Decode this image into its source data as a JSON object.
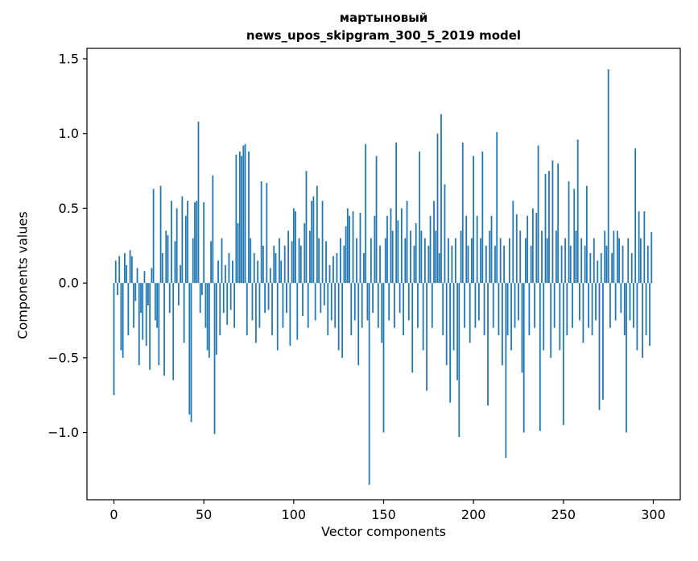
{
  "chart_data": {
    "type": "bar",
    "title_line1": "мартыновый",
    "title_line2": "news_upos_skipgram_300_5_2019 model",
    "xlabel": "Vector components",
    "ylabel": "Components values",
    "bar_color": "#1f77b4",
    "axis_color": "#000000",
    "n_components": 300,
    "xlim": [
      -15,
      315
    ],
    "ylim": [
      -1.45,
      1.57
    ],
    "grid": false,
    "legend": "none",
    "x_ticks": [
      0,
      50,
      100,
      150,
      200,
      250,
      300
    ],
    "y_tick_values": [
      1.5,
      1.0,
      0.5,
      0.0,
      -0.5,
      -1.0
    ],
    "y_tick_labels": [
      "1.5",
      "1.0",
      "0.5",
      "0.0",
      "−0.5",
      "−1.0"
    ],
    "values": [
      -0.75,
      0.15,
      -0.08,
      0.18,
      -0.45,
      -0.5,
      0.2,
      0.12,
      -0.35,
      0.22,
      0.18,
      -0.3,
      -0.12,
      0.1,
      -0.55,
      -0.2,
      -0.38,
      0.08,
      -0.42,
      -0.15,
      -0.58,
      0.1,
      0.63,
      -0.25,
      -0.3,
      -0.55,
      0.65,
      0.2,
      -0.62,
      0.35,
      0.32,
      -0.2,
      0.55,
      -0.65,
      0.28,
      0.5,
      -0.15,
      0.12,
      0.58,
      -0.4,
      0.45,
      0.55,
      -0.88,
      -0.93,
      0.3,
      0.54,
      0.55,
      1.08,
      -0.2,
      -0.08,
      0.54,
      -0.3,
      -0.45,
      -0.5,
      0.28,
      0.72,
      -1.01,
      -0.48,
      0.15,
      -0.35,
      0.3,
      -0.2,
      0.12,
      -0.28,
      0.2,
      -0.18,
      0.15,
      -0.3,
      0.86,
      0.4,
      0.88,
      0.85,
      0.92,
      0.93,
      -0.35,
      0.88,
      0.3,
      -0.25,
      0.2,
      -0.4,
      0.15,
      -0.3,
      0.68,
      0.25,
      -0.2,
      0.67,
      -0.18,
      0.1,
      -0.35,
      0.25,
      0.2,
      -0.45,
      0.3,
      0.15,
      -0.3,
      0.25,
      -0.2,
      0.35,
      -0.42,
      0.28,
      0.5,
      0.48,
      -0.38,
      0.3,
      0.25,
      -0.22,
      0.4,
      0.75,
      -0.3,
      0.35,
      0.55,
      0.58,
      -0.25,
      0.65,
      0.3,
      -0.2,
      0.55,
      -0.15,
      0.28,
      -0.35,
      0.12,
      -0.25,
      0.18,
      -0.3,
      0.2,
      -0.45,
      0.3,
      -0.5,
      0.25,
      0.38,
      0.5,
      0.45,
      -0.35,
      0.48,
      -0.25,
      0.3,
      -0.55,
      0.47,
      -0.3,
      0.2,
      0.93,
      -0.25,
      -1.35,
      0.3,
      -0.2,
      0.45,
      0.85,
      -0.3,
      0.25,
      -0.4,
      -1.0,
      0.3,
      0.45,
      -0.25,
      0.5,
      0.35,
      -0.3,
      0.94,
      0.42,
      -0.2,
      0.5,
      -0.35,
      0.3,
      0.55,
      -0.25,
      0.35,
      -0.6,
      0.25,
      0.4,
      -0.3,
      0.88,
      0.35,
      -0.45,
      0.3,
      -0.72,
      0.25,
      0.45,
      -0.3,
      0.55,
      0.35,
      1.0,
      0.2,
      1.13,
      -0.35,
      0.66,
      -0.55,
      0.3,
      -0.8,
      0.25,
      -0.45,
      0.3,
      -0.65,
      -1.03,
      0.35,
      0.94,
      -0.3,
      0.45,
      0.25,
      -0.4,
      0.3,
      0.85,
      -0.3,
      0.45,
      -0.25,
      0.3,
      0.88,
      -0.35,
      0.25,
      -0.82,
      0.35,
      0.45,
      -0.3,
      0.25,
      1.01,
      -0.35,
      0.3,
      -0.55,
      0.25,
      -1.17,
      -0.35,
      0.3,
      -0.45,
      0.55,
      -0.3,
      0.46,
      -0.25,
      0.35,
      -0.6,
      -1.0,
      0.3,
      0.45,
      -0.35,
      0.25,
      0.5,
      -0.3,
      0.47,
      0.92,
      -0.99,
      0.35,
      -0.45,
      0.73,
      0.3,
      0.75,
      -0.5,
      0.82,
      -0.3,
      0.35,
      0.8,
      -0.45,
      0.25,
      -0.95,
      0.3,
      -0.35,
      0.68,
      0.25,
      -0.3,
      0.63,
      0.35,
      0.96,
      -0.25,
      0.3,
      -0.4,
      0.25,
      0.65,
      -0.3,
      0.2,
      -0.35,
      0.3,
      -0.25,
      0.15,
      -0.85,
      0.2,
      -0.78,
      0.35,
      0.25,
      1.43,
      -0.3,
      0.2,
      0.35,
      -0.25,
      0.35,
      0.3,
      -0.2,
      0.25,
      -0.35,
      -1.0,
      0.3,
      -0.25,
      0.2,
      -0.3,
      0.9,
      -0.45,
      0.48,
      0.3,
      -0.5,
      0.48,
      -0.35,
      0.25,
      -0.42,
      0.34
    ]
  }
}
